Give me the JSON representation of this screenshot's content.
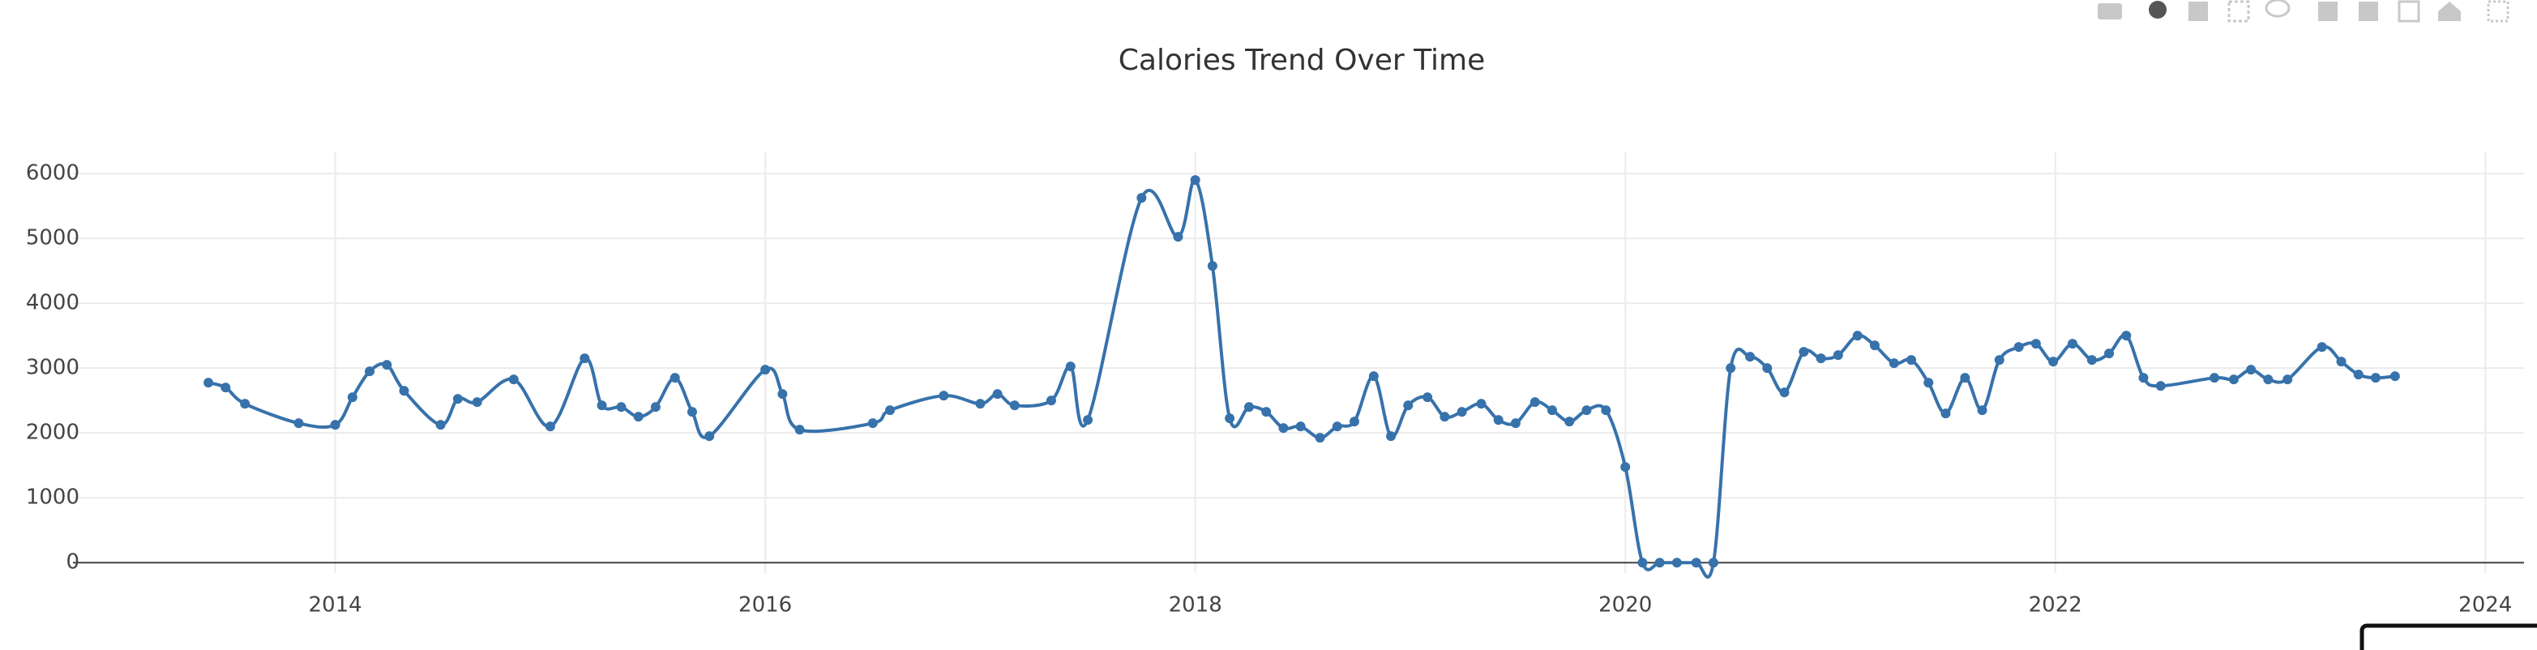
{
  "chart_data": {
    "type": "line",
    "title": "Calories Trend Over Time",
    "x": [
      2013.41,
      2013.49,
      2013.58,
      2013.83,
      2014.0,
      2014.08,
      2014.16,
      2014.24,
      2014.32,
      2014.49,
      2014.57,
      2014.66,
      2014.83,
      2015.0,
      2015.16,
      2015.24,
      2015.33,
      2015.41,
      2015.49,
      2015.58,
      2015.66,
      2015.74,
      2016.0,
      2016.08,
      2016.16,
      2016.5,
      2016.58,
      2016.83,
      2017.0,
      2017.08,
      2017.16,
      2017.33,
      2017.42,
      2017.5,
      2017.75,
      2017.92,
      2018.0,
      2018.08,
      2018.16,
      2018.25,
      2018.33,
      2018.41,
      2018.49,
      2018.58,
      2018.66,
      2018.74,
      2018.83,
      2018.91,
      2018.99,
      2019.08,
      2019.16,
      2019.24,
      2019.33,
      2019.41,
      2019.49,
      2019.58,
      2019.66,
      2019.74,
      2019.82,
      2019.91,
      2020.0,
      2020.08,
      2020.16,
      2020.24,
      2020.33,
      2020.41,
      2020.49,
      2020.58,
      2020.66,
      2020.74,
      2020.83,
      2020.91,
      2020.99,
      2021.08,
      2021.16,
      2021.25,
      2021.33,
      2021.41,
      2021.49,
      2021.58,
      2021.66,
      2021.74,
      2021.83,
      2021.91,
      2021.99,
      2022.08,
      2022.17,
      2022.25,
      2022.33,
      2022.41,
      2022.49,
      2022.74,
      2022.83,
      2022.91,
      2022.99,
      2023.08,
      2023.24,
      2023.33,
      2023.41,
      2023.49,
      2023.58
    ],
    "series": [
      {
        "color": "#3772ab",
        "values": [
          2775,
          2700,
          2450,
          2150,
          2125,
          2550,
          2950,
          3050,
          2650,
          2125,
          2525,
          2475,
          2825,
          2100,
          3150,
          2425,
          2400,
          2250,
          2400,
          2850,
          2325,
          1950,
          2975,
          2600,
          2050,
          2150,
          2350,
          2575,
          2450,
          2600,
          2425,
          2500,
          3025,
          2200,
          5625,
          5025,
          5900,
          4575,
          2225,
          2400,
          2325,
          2075,
          2100,
          1925,
          2100,
          2175,
          2875,
          1950,
          2425,
          2550,
          2250,
          2325,
          2450,
          2200,
          2150,
          2475,
          2350,
          2175,
          2350,
          2350,
          1475,
          0,
          0,
          0,
          0,
          0,
          3000,
          3175,
          3000,
          2625,
          3250,
          3150,
          3200,
          3500,
          3350,
          3075,
          3125,
          2775,
          2300,
          2850,
          2350,
          3125,
          3325,
          3375,
          3100,
          3375,
          3125,
          3225,
          3500,
          2850,
          2725,
          2850,
          2825,
          2975,
          2825,
          2825,
          3325,
          3100,
          2900,
          2850,
          2875
        ]
      }
    ],
    "xlim": [
      2012.78,
      2024.18
    ],
    "xticks": [
      2014,
      2016,
      2018,
      2020,
      2022,
      2024
    ],
    "ylim": [
      -160,
      6327
    ],
    "yticks": [
      0,
      1000,
      2000,
      3000,
      4000,
      5000,
      6000
    ],
    "grid": true
  }
}
